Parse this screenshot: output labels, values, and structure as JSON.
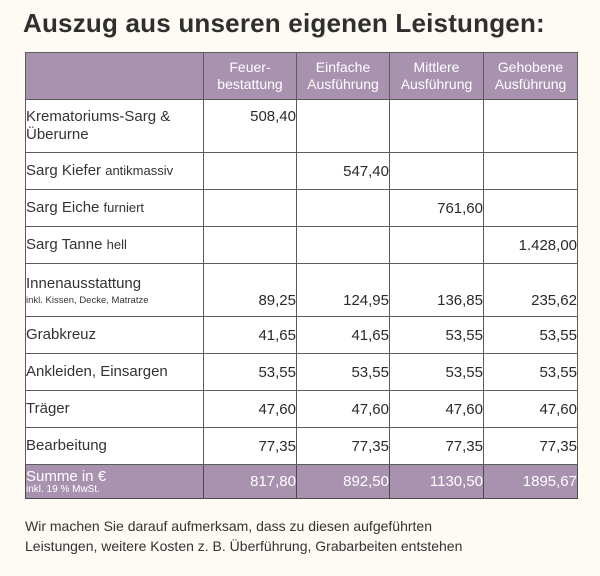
{
  "title": "Auszug aus unseren eigenen Leistungen:",
  "columns": [
    {
      "line1": "Feuer-",
      "line2": "bestattung"
    },
    {
      "line1": "Einfache",
      "line2": "Ausführung"
    },
    {
      "line1": "Mittlere",
      "line2": "Ausführung"
    },
    {
      "line1": "Gehobene",
      "line2": "Ausführung"
    }
  ],
  "rows": [
    {
      "main": "Krematoriums-Sarg &",
      "main2": "Überurne",
      "sub": "",
      "values": [
        "508,40",
        "",
        "",
        ""
      ]
    },
    {
      "main": "Sarg Kiefer",
      "sub": "antikmassiv",
      "values": [
        "",
        "547,40",
        "",
        ""
      ]
    },
    {
      "main": "Sarg Eiche",
      "sub": "furniert",
      "values": [
        "",
        "",
        "761,60",
        ""
      ]
    },
    {
      "main": "Sarg Tanne",
      "sub": "hell",
      "values": [
        "",
        "",
        "",
        "1.428,00"
      ]
    },
    {
      "main": "Innenausstattung",
      "tiny": "inkl. Kissen, Decke, Matratze",
      "values": [
        "89,25",
        "124,95",
        "136,85",
        "235,62"
      ]
    },
    {
      "main": "Grabkreuz",
      "values": [
        "41,65",
        "41,65",
        "53,55",
        "53,55"
      ]
    },
    {
      "main": "Ankleiden, Einsargen",
      "values": [
        "53,55",
        "53,55",
        "53,55",
        "53,55"
      ]
    },
    {
      "main": "Träger",
      "values": [
        "47,60",
        "47,60",
        "47,60",
        "47,60"
      ]
    },
    {
      "main": "Bearbeitung",
      "values": [
        "77,35",
        "77,35",
        "77,35",
        "77,35"
      ]
    }
  ],
  "sum": {
    "label": "Summe in €",
    "sublabel": "inkl. 19 % MwSt.",
    "values": [
      "817,80",
      "892,50",
      "1130,50",
      "1895,67"
    ]
  },
  "footer": {
    "line1": "Wir machen Sie darauf aufmerksam, dass zu diesen aufgeführten",
    "line2": "Leistungen, weitere Kosten z. B. Überführung, Grabarbeiten entstehen"
  },
  "colors": {
    "header_bg": "#a892b0",
    "border": "#5c5c5c"
  }
}
